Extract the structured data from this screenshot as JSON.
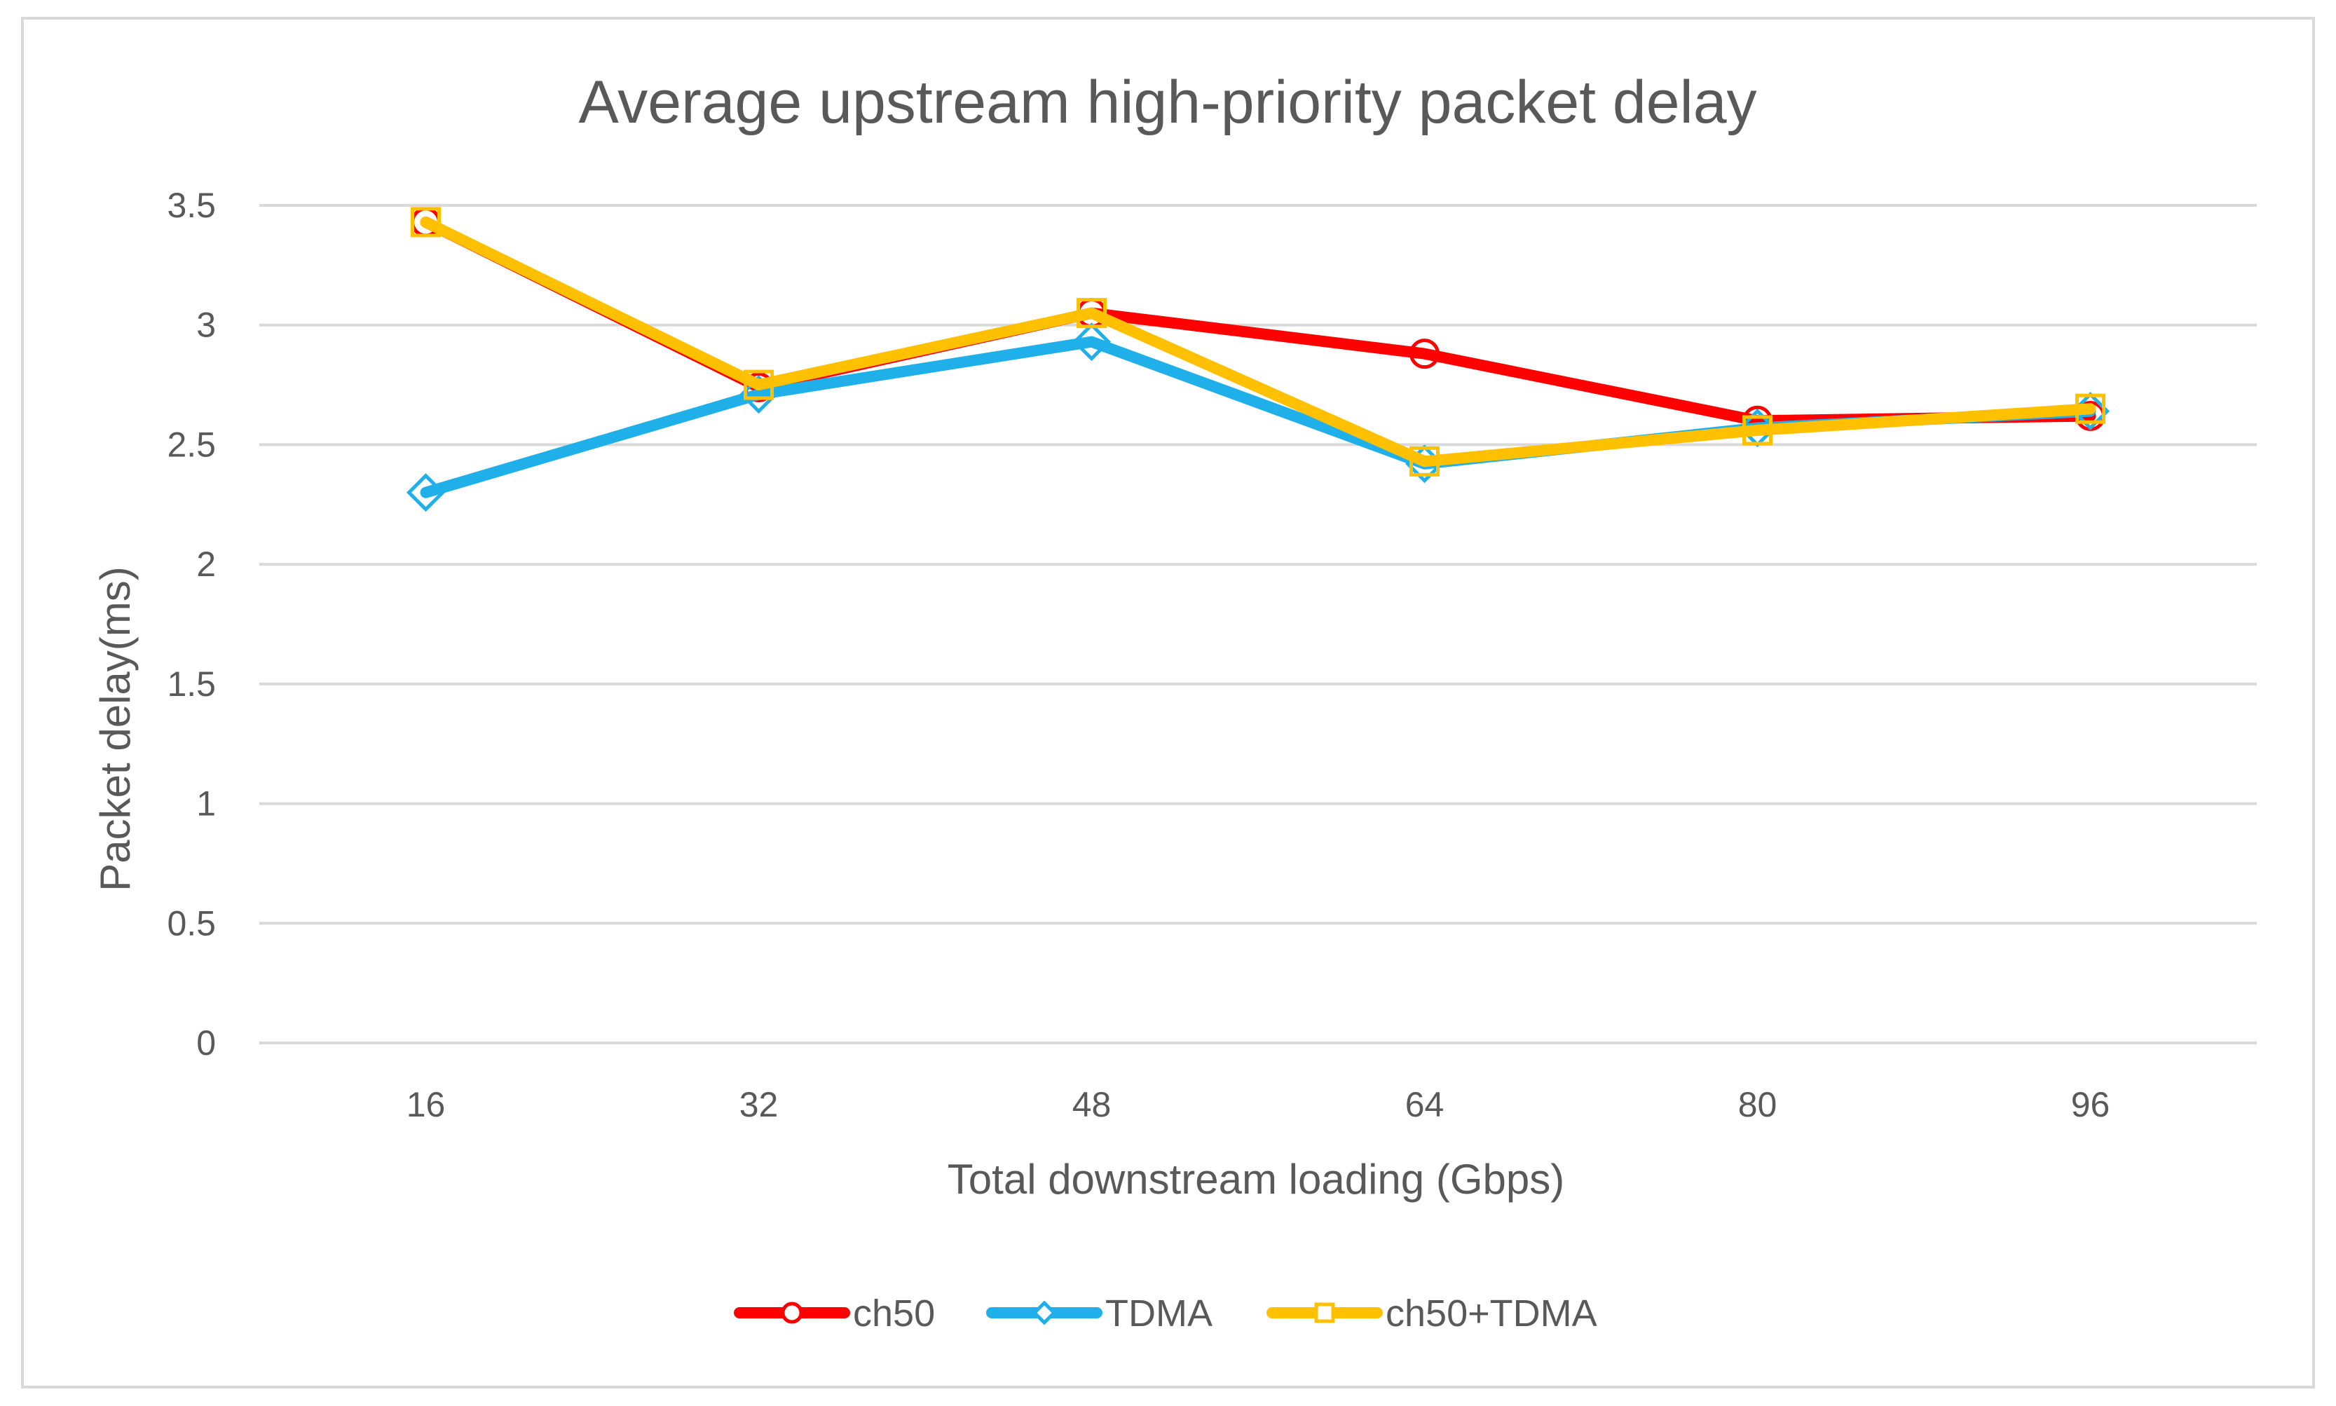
{
  "chart_data": {
    "type": "line",
    "title": "Average upstream high-priority packet delay",
    "xlabel": "Total downstream loading (Gbps)",
    "ylabel": "Packet delay(ms)",
    "categories": [
      "16",
      "32",
      "48",
      "64",
      "80",
      "96"
    ],
    "ylim": [
      0,
      3.5
    ],
    "yticks": [
      "0",
      "0.5",
      "1",
      "1.5",
      "2",
      "2.5",
      "3",
      "3.5"
    ],
    "grid": true,
    "legend_position": "bottom",
    "series": [
      {
        "name": "ch50",
        "color": "#ff0000",
        "marker": "circle",
        "values": [
          3.43,
          2.74,
          3.05,
          2.88,
          2.6,
          2.62
        ]
      },
      {
        "name": "TDMA",
        "color": "#1fb0ea",
        "marker": "diamond",
        "values": [
          2.3,
          2.71,
          2.93,
          2.42,
          2.57,
          2.64
        ]
      },
      {
        "name": "ch50+TDMA",
        "color": "#ffc000",
        "marker": "square",
        "values": [
          3.43,
          2.75,
          3.05,
          2.43,
          2.56,
          2.65
        ]
      }
    ]
  }
}
